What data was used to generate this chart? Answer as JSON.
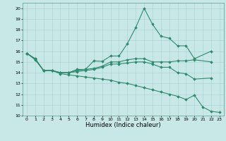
{
  "lines": [
    {
      "x": [
        0,
        1,
        2,
        3,
        4,
        5,
        6,
        7,
        8,
        9,
        10,
        11,
        12,
        13,
        14,
        15,
        16,
        17,
        18,
        19,
        20,
        22
      ],
      "y": [
        15.8,
        15.3,
        14.2,
        14.2,
        14.0,
        14.0,
        14.3,
        14.3,
        15.1,
        15.05,
        15.55,
        15.55,
        16.7,
        18.2,
        20.0,
        18.5,
        17.4,
        17.2,
        16.5,
        16.5,
        15.3,
        16.0
      ],
      "marker": "D",
      "markersize": 1.8,
      "linewidth": 0.8
    },
    {
      "x": [
        0,
        1,
        2,
        3,
        4,
        5,
        6,
        7,
        8,
        9,
        10,
        11,
        12,
        13,
        14,
        15,
        16,
        17,
        18,
        19,
        20,
        22
      ],
      "y": [
        15.8,
        15.3,
        14.2,
        14.2,
        14.0,
        14.0,
        14.2,
        14.3,
        14.4,
        14.6,
        15.0,
        15.0,
        15.2,
        15.3,
        15.3,
        15.0,
        15.0,
        15.0,
        15.1,
        15.1,
        15.2,
        15.0
      ],
      "marker": "D",
      "markersize": 1.8,
      "linewidth": 0.8
    },
    {
      "x": [
        0,
        1,
        2,
        3,
        4,
        5,
        6,
        7,
        8,
        9,
        10,
        11,
        12,
        13,
        14,
        15,
        16,
        17,
        18,
        19,
        20,
        22
      ],
      "y": [
        15.8,
        15.25,
        14.2,
        14.2,
        14.0,
        14.0,
        14.1,
        14.2,
        14.3,
        14.5,
        14.8,
        14.8,
        14.9,
        15.0,
        15.0,
        14.8,
        14.5,
        14.5,
        14.0,
        13.9,
        13.4,
        13.5
      ],
      "marker": "D",
      "markersize": 1.8,
      "linewidth": 0.8
    },
    {
      "x": [
        0,
        1,
        2,
        3,
        4,
        5,
        6,
        7,
        8,
        9,
        10,
        11,
        12,
        13,
        14,
        15,
        16,
        17,
        18,
        19,
        20,
        21,
        22,
        23
      ],
      "y": [
        15.8,
        15.2,
        14.2,
        14.2,
        13.9,
        13.8,
        13.7,
        13.6,
        13.5,
        13.4,
        13.3,
        13.1,
        13.0,
        12.8,
        12.6,
        12.4,
        12.2,
        12.0,
        11.8,
        11.5,
        11.9,
        10.8,
        10.4,
        10.3
      ],
      "marker": "D",
      "markersize": 1.8,
      "linewidth": 0.8
    }
  ],
  "xlim": [
    -0.5,
    23.5
  ],
  "ylim": [
    10,
    20.5
  ],
  "yticks": [
    10,
    11,
    12,
    13,
    14,
    15,
    16,
    17,
    18,
    19,
    20
  ],
  "xticks": [
    0,
    1,
    2,
    3,
    4,
    5,
    6,
    7,
    8,
    9,
    10,
    11,
    12,
    13,
    14,
    15,
    16,
    17,
    18,
    19,
    20,
    21,
    22,
    23
  ],
  "xlabel": "Humidex (Indice chaleur)",
  "xlabel_fontsize": 6,
  "tick_fontsize": 4.5,
  "bg_color": "#c8e8e8",
  "grid_color": "#a8cece",
  "line_color": "#2e8b6e",
  "spine_color": "#5a9a8a",
  "figsize": [
    3.2,
    2.0
  ],
  "dpi": 100
}
